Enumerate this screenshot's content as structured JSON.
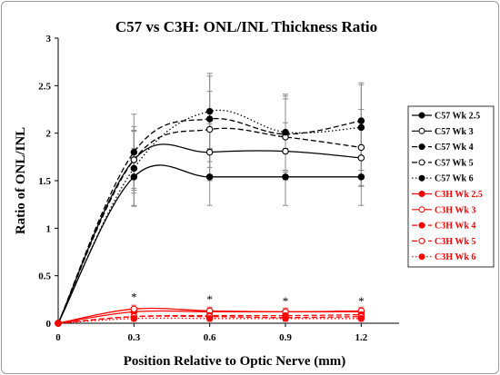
{
  "chart_data": {
    "type": "line",
    "title": "C57 vs C3H: ONL/INL Thickness Ratio",
    "xlabel": "Position Relative to Optic Nerve (mm)",
    "ylabel": "Ratio of ONL/INL",
    "x": [
      0,
      0.3,
      0.6,
      0.9,
      1.2
    ],
    "x_ticks": [
      "0",
      "0.3",
      "0.6",
      "0.9",
      "1.2"
    ],
    "y_ticks": [
      "0",
      "0.5",
      "1",
      "1.5",
      "2",
      "2.5",
      "3"
    ],
    "xlim": [
      0,
      1.35
    ],
    "ylim": [
      0,
      3
    ],
    "grid": false,
    "legend_position": "right",
    "significance_marks": [
      {
        "x": 0.3,
        "y": 0.28,
        "label": "*"
      },
      {
        "x": 0.6,
        "y": 0.26,
        "label": "*"
      },
      {
        "x": 0.9,
        "y": 0.24,
        "label": "*"
      },
      {
        "x": 1.2,
        "y": 0.24,
        "label": "*"
      }
    ],
    "series": [
      {
        "name": "C57 Wk 2.5",
        "values": [
          0,
          1.54,
          1.54,
          1.54,
          1.54
        ],
        "error": [
          0,
          0.3,
          0.3,
          0.3,
          0.3
        ],
        "color": "#000000",
        "dash": "solid",
        "marker": "filled"
      },
      {
        "name": "C57 Wk 3",
        "values": [
          0,
          1.72,
          1.8,
          1.81,
          1.74
        ],
        "error": [
          0,
          0.3,
          0.3,
          0.3,
          0.3
        ],
        "color": "#000000",
        "dash": "solid",
        "marker": "open"
      },
      {
        "name": "C57 Wk 4",
        "values": [
          0,
          1.8,
          2.15,
          1.99,
          2.13
        ],
        "error": [
          0,
          0.4,
          0.45,
          0.4,
          0.4
        ],
        "color": "#000000",
        "dash": "dashed",
        "marker": "filled"
      },
      {
        "name": "C57 Wk 5",
        "values": [
          0,
          1.72,
          2.04,
          1.96,
          1.85
        ],
        "error": [
          0,
          0.35,
          0.4,
          0.4,
          0.4
        ],
        "color": "#000000",
        "dash": "dashed",
        "marker": "open"
      },
      {
        "name": "C57 Wk 6",
        "values": [
          0,
          1.63,
          2.23,
          2.01,
          2.06
        ],
        "error": [
          0,
          0.4,
          0.4,
          0.4,
          0.45
        ],
        "color": "#000000",
        "dash": "dotted",
        "marker": "filled"
      },
      {
        "name": "C3H Wk 2.5",
        "values": [
          0,
          0.12,
          0.12,
          0.12,
          0.12
        ],
        "error": [
          0,
          0.04,
          0.04,
          0.04,
          0.04
        ],
        "color": "#ff0000",
        "dash": "solid",
        "marker": "filled"
      },
      {
        "name": "C3H Wk 3",
        "values": [
          0,
          0.15,
          0.13,
          0.12,
          0.13
        ],
        "error": [
          0,
          0.04,
          0.04,
          0.04,
          0.04
        ],
        "color": "#ff0000",
        "dash": "solid",
        "marker": "open"
      },
      {
        "name": "C3H Wk 4",
        "values": [
          0,
          0.07,
          0.08,
          0.08,
          0.09
        ],
        "error": [
          0,
          0.03,
          0.03,
          0.03,
          0.03
        ],
        "color": "#ff0000",
        "dash": "dashed",
        "marker": "filled"
      },
      {
        "name": "C3H Wk 5",
        "values": [
          0,
          0.07,
          0.07,
          0.06,
          0.07
        ],
        "error": [
          0,
          0.03,
          0.03,
          0.03,
          0.03
        ],
        "color": "#ff0000",
        "dash": "dashed",
        "marker": "open"
      },
      {
        "name": "C3H Wk 6",
        "values": [
          0,
          0.05,
          0.05,
          0.05,
          0.05
        ],
        "error": [
          0,
          0.03,
          0.03,
          0.03,
          0.03
        ],
        "color": "#ff0000",
        "dash": "dotted",
        "marker": "filled"
      }
    ]
  }
}
